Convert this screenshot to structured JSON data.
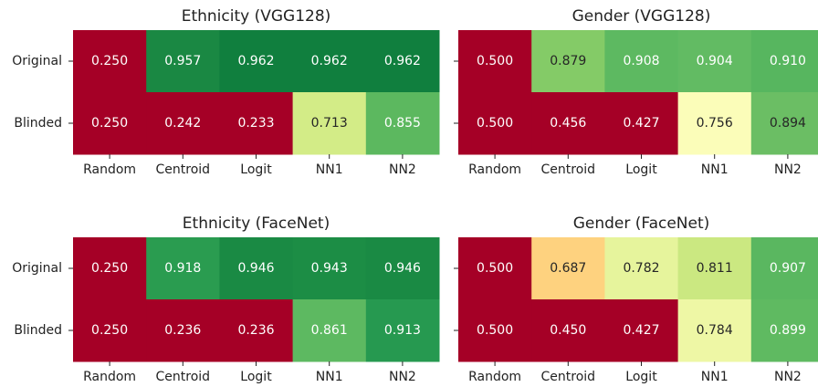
{
  "chart_data": [
    {
      "type": "heatmap",
      "title": "Ethnicity (VGG128)",
      "x_categories": [
        "Random",
        "Centroid",
        "Logit",
        "NN1",
        "NN2"
      ],
      "y_categories": [
        "Original",
        "Blinded"
      ],
      "values": [
        [
          0.25,
          0.957,
          0.962,
          0.962,
          0.962
        ],
        [
          0.25,
          0.242,
          0.233,
          0.713,
          0.855
        ]
      ],
      "value_labels": [
        [
          "0.250",
          "0.957",
          "0.962",
          "0.962",
          "0.962"
        ],
        [
          "0.250",
          "0.242",
          "0.233",
          "0.713",
          "0.855"
        ]
      ],
      "colors": [
        [
          "#a50026",
          "#1a8843",
          "#107f3e",
          "#107f3e",
          "#107f3e"
        ],
        [
          "#a50026",
          "#a50026",
          "#a50026",
          "#d3ec87",
          "#5cb85f"
        ]
      ]
    },
    {
      "type": "heatmap",
      "title": "Gender (VGG128)",
      "x_categories": [
        "Random",
        "Centroid",
        "Logit",
        "NN1",
        "NN2"
      ],
      "values": [
        [
          0.5,
          0.879,
          0.908,
          0.904,
          0.91
        ],
        [
          0.5,
          0.456,
          0.427,
          0.756,
          0.894
        ]
      ],
      "value_labels": [
        [
          "0.500",
          "0.879",
          "0.908",
          "0.904",
          "0.910"
        ],
        [
          "0.500",
          "0.456",
          "0.427",
          "0.756",
          "0.894"
        ]
      ],
      "colors": [
        [
          "#a50026",
          "#84cb67",
          "#5db961",
          "#62bb63",
          "#57b65f"
        ],
        [
          "#a50026",
          "#a50026",
          "#a50026",
          "#fbfdb9",
          "#6bbe64"
        ]
      ]
    },
    {
      "type": "heatmap",
      "title": "Ethnicity (FaceNet)",
      "x_categories": [
        "Random",
        "Centroid",
        "Logit",
        "NN1",
        "NN2"
      ],
      "y_categories": [
        "Original",
        "Blinded"
      ],
      "values": [
        [
          0.25,
          0.918,
          0.946,
          0.943,
          0.946
        ],
        [
          0.25,
          0.236,
          0.236,
          0.861,
          0.913
        ]
      ],
      "value_labels": [
        [
          "0.250",
          "0.918",
          "0.946",
          "0.943",
          "0.946"
        ],
        [
          "0.250",
          "0.236",
          "0.236",
          "0.861",
          "0.913"
        ]
      ],
      "colors": [
        [
          "#a50026",
          "#2a9c50",
          "#1a8a44",
          "#1c8d45",
          "#1a8a44"
        ],
        [
          "#a50026",
          "#a50026",
          "#a50026",
          "#5db961",
          "#269950"
        ]
      ]
    },
    {
      "type": "heatmap",
      "title": "Gender (FaceNet)",
      "x_categories": [
        "Random",
        "Centroid",
        "Logit",
        "NN1",
        "NN2"
      ],
      "values": [
        [
          0.5,
          0.687,
          0.782,
          0.811,
          0.907
        ],
        [
          0.5,
          0.45,
          0.427,
          0.784,
          0.899
        ]
      ],
      "value_labels": [
        [
          "0.500",
          "0.687",
          "0.782",
          "0.811",
          "0.907"
        ],
        [
          "0.500",
          "0.450",
          "0.427",
          "0.784",
          "0.899"
        ]
      ],
      "colors": [
        [
          "#a50026",
          "#fed27f",
          "#e6f49c",
          "#cbe881",
          "#5ab760"
        ],
        [
          "#a50026",
          "#a50026",
          "#a50026",
          "#eef7a5",
          "#5fba61"
        ]
      ]
    }
  ]
}
